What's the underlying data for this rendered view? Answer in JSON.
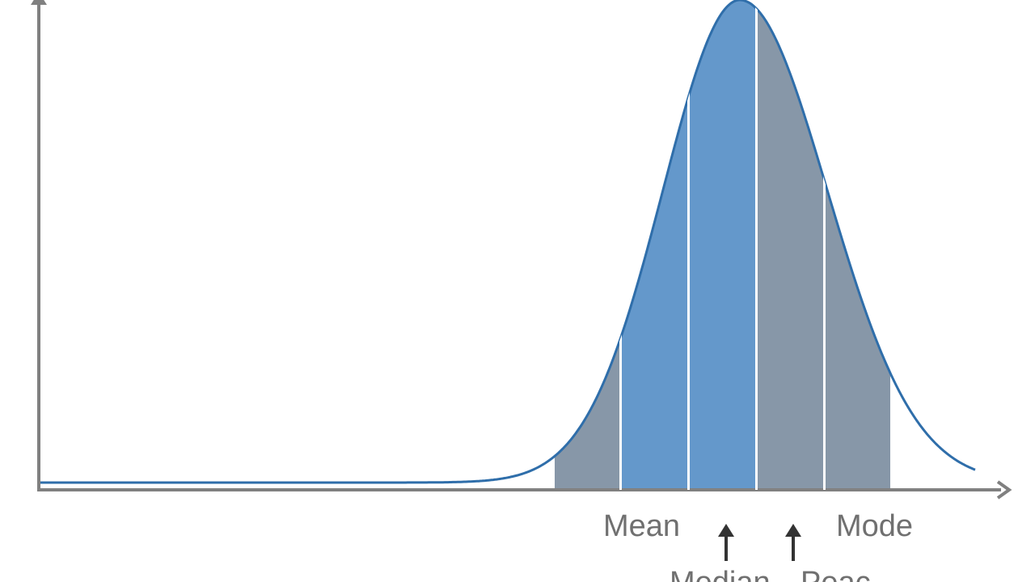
{
  "labels": {
    "mean": "Mean",
    "mode": "Mode",
    "median": "Median",
    "peak": "Peac"
  },
  "colors": {
    "background": "#ffffff",
    "axis": "#808080",
    "curve": "#2f6eaa",
    "center_band": "#6498cb",
    "outer_band": "#8797a8",
    "arrow": "#333333",
    "label": "#707070"
  },
  "bands": [
    {
      "name": "outer-left",
      "color": "outer_band"
    },
    {
      "name": "center-1",
      "color": "center_band"
    },
    {
      "name": "center-2",
      "color": "center_band"
    },
    {
      "name": "outer-right-1",
      "color": "outer_band"
    },
    {
      "name": "outer-right-2",
      "color": "outer_band"
    }
  ]
}
